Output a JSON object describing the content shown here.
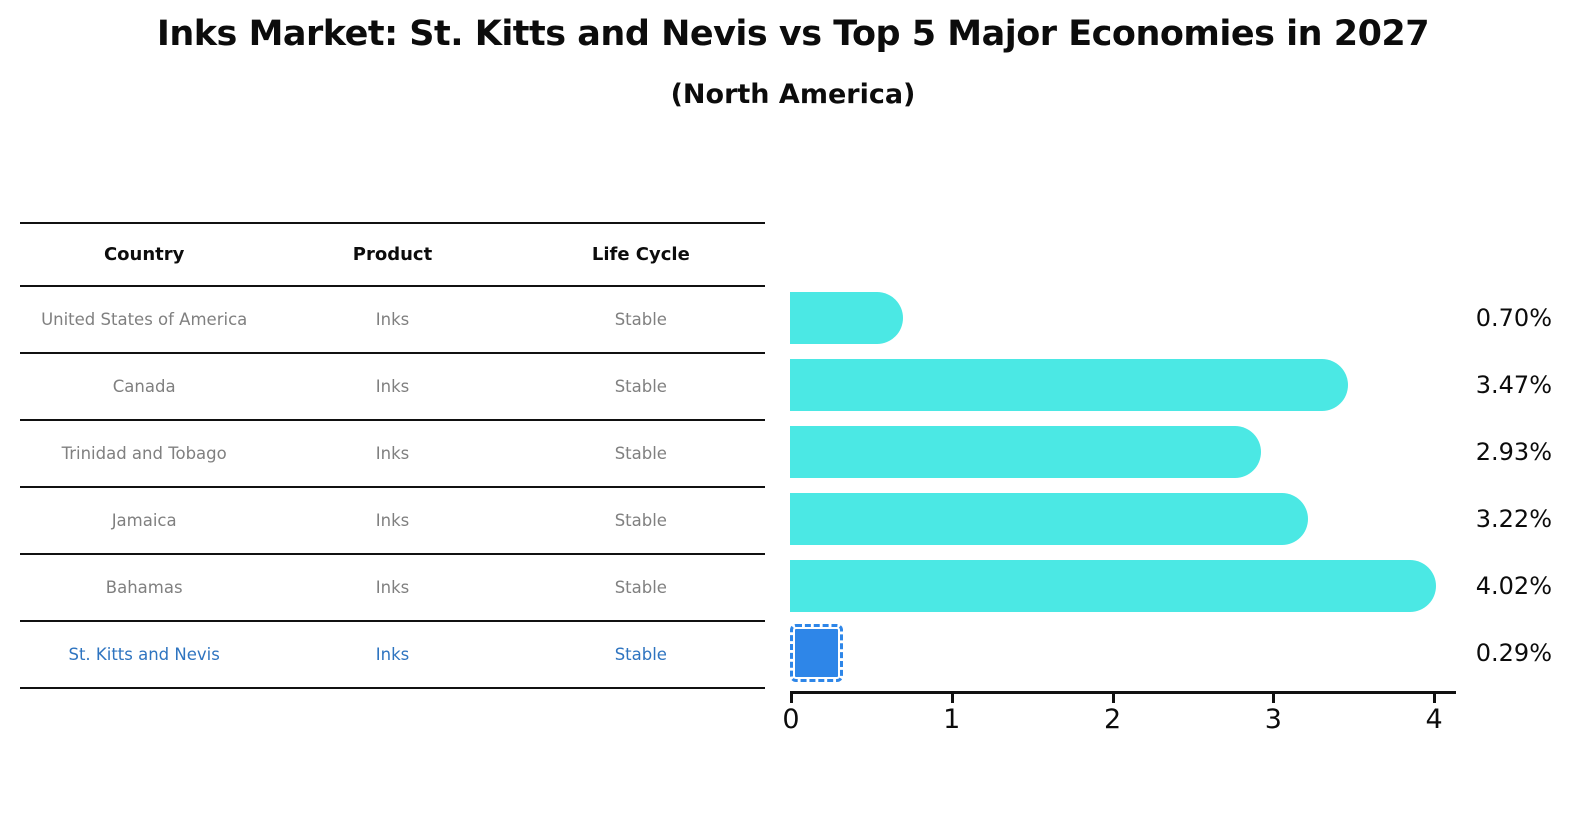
{
  "title": "Inks Market: St. Kitts and Nevis vs Top 5 Major Economies in 2027",
  "subtitle": "(North America)",
  "table": {
    "headers": [
      "Country",
      "Product",
      "Life Cycle"
    ],
    "rows": [
      {
        "country": "United States of America",
        "product": "Inks",
        "life_cycle": "Stable",
        "highlight": false
      },
      {
        "country": "Canada",
        "product": "Inks",
        "life_cycle": "Stable",
        "highlight": false
      },
      {
        "country": "Trinidad and Tobago",
        "product": "Inks",
        "life_cycle": "Stable",
        "highlight": false
      },
      {
        "country": "Jamaica",
        "product": "Inks",
        "life_cycle": "Stable",
        "highlight": false
      },
      {
        "country": "Bahamas",
        "product": "Inks",
        "life_cycle": "Stable",
        "highlight": false
      },
      {
        "country": "St. Kitts and Nevis",
        "product": "Inks",
        "life_cycle": "Stable",
        "highlight": true
      }
    ]
  },
  "chart_data": {
    "type": "bar",
    "orientation": "horizontal",
    "title": "Inks Market: St. Kitts and Nevis vs Top 5 Major Economies in 2027",
    "subtitle": "(North America)",
    "categories": [
      "United States of America",
      "Canada",
      "Trinidad and Tobago",
      "Jamaica",
      "Bahamas",
      "St. Kitts and Nevis"
    ],
    "values": [
      0.7,
      3.47,
      2.93,
      3.22,
      4.02,
      0.29
    ],
    "value_labels": [
      "0.70%",
      "3.47%",
      "2.93%",
      "3.22%",
      "4.02%",
      "0.29%"
    ],
    "x_ticks": [
      0,
      1,
      2,
      3,
      4
    ],
    "x_tick_labels": [
      "0",
      "1",
      "2",
      "3",
      "4"
    ],
    "xlim": [
      0,
      4.13
    ],
    "highlight_index": 5,
    "bar_color": "#4be8e4",
    "highlight_bar_color": "#2e86e8",
    "grid": false,
    "legend": false
  },
  "colors": {
    "bar_cyan": "#4be8e4",
    "bar_blue": "#2e86e8",
    "highlight_text": "#2e74c0",
    "row_text": "#808080",
    "header_text": "#0c0c0c",
    "axis": "#111111"
  }
}
